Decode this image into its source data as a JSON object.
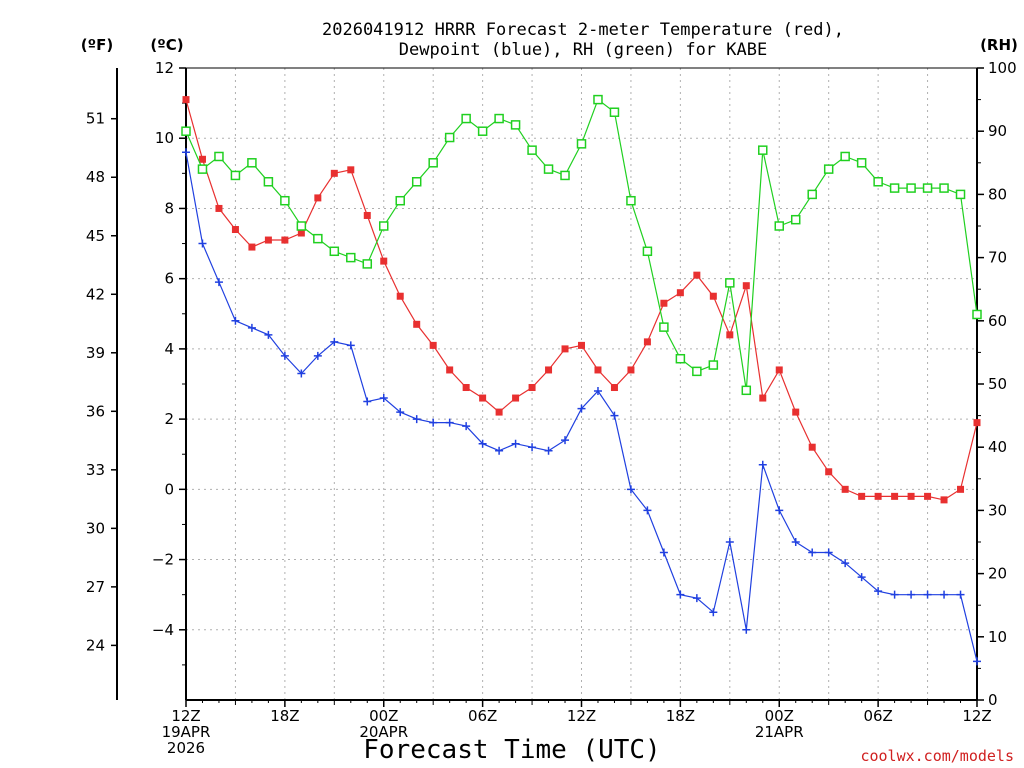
{
  "chart_data": {
    "type": "line",
    "title_line1": "2026041912 HRRR Forecast 2-meter Temperature (red),",
    "title_line2": "Dewpoint (blue), RH (green) for KABE",
    "xlabel": "Forecast Time (UTC)",
    "credit": "coolwx.com/models",
    "units": {
      "fahrenheit": "(ºF)",
      "celsius": "(ºC)",
      "rh": "(RH)"
    },
    "x_range": [
      0,
      48
    ],
    "celsius_axis": {
      "range": [
        -6,
        12
      ],
      "ticks": [
        -4,
        -2,
        0,
        2,
        4,
        6,
        8,
        10,
        12
      ],
      "tick_labels": [
        "−4",
        "−2",
        "0",
        "2",
        "4",
        "6",
        "8",
        "10",
        "12"
      ]
    },
    "fahrenheit_axis": {
      "ticks": [
        24,
        27,
        30,
        33,
        36,
        39,
        42,
        45,
        48,
        51
      ]
    },
    "rh_axis": {
      "range": [
        0,
        100
      ],
      "ticks": [
        0,
        10,
        20,
        30,
        40,
        50,
        60,
        70,
        80,
        90,
        100
      ]
    },
    "x_ticks": [
      {
        "hour": 0,
        "lines": [
          "12Z",
          "19APR",
          "2026"
        ]
      },
      {
        "hour": 6,
        "lines": [
          "18Z"
        ]
      },
      {
        "hour": 12,
        "lines": [
          "00Z",
          "20APR"
        ]
      },
      {
        "hour": 18,
        "lines": [
          "06Z"
        ]
      },
      {
        "hour": 24,
        "lines": [
          "12Z"
        ]
      },
      {
        "hour": 30,
        "lines": [
          "18Z"
        ]
      },
      {
        "hour": 36,
        "lines": [
          "00Z",
          "21APR"
        ]
      },
      {
        "hour": 42,
        "lines": [
          "06Z"
        ]
      },
      {
        "hour": 48,
        "lines": [
          "12Z"
        ]
      }
    ],
    "series": [
      {
        "name": "Temperature",
        "axis": "celsius",
        "color": "#e83030",
        "marker": "filled-square",
        "values": [
          11.1,
          9.4,
          8.0,
          7.4,
          6.9,
          7.1,
          7.1,
          7.3,
          8.3,
          9.0,
          9.1,
          7.8,
          6.5,
          5.5,
          4.7,
          4.1,
          3.4,
          2.9,
          2.6,
          2.2,
          2.6,
          2.9,
          3.4,
          4.0,
          4.1,
          3.4,
          2.9,
          3.4,
          4.2,
          5.3,
          5.6,
          6.1,
          5.5,
          4.4,
          5.8,
          2.6,
          3.4,
          2.2,
          1.2,
          0.5,
          0.0,
          -0.2,
          -0.2,
          -0.2,
          -0.2,
          -0.2,
          -0.3,
          0.0,
          1.9
        ]
      },
      {
        "name": "Dewpoint",
        "axis": "celsius",
        "color": "#2040e0",
        "marker": "plus",
        "values": [
          9.6,
          7.0,
          5.9,
          4.8,
          4.6,
          4.4,
          3.8,
          3.3,
          3.8,
          4.2,
          4.1,
          2.5,
          2.6,
          2.2,
          2.0,
          1.9,
          1.9,
          1.8,
          1.3,
          1.1,
          1.3,
          1.2,
          1.1,
          1.4,
          2.3,
          2.8,
          2.1,
          0.0,
          -0.6,
          -1.8,
          -3.0,
          -3.1,
          -3.5,
          -1.5,
          -4.0,
          0.7,
          -0.6,
          -1.5,
          -1.8,
          -1.8,
          -2.1,
          -2.5,
          -2.9,
          -3.0,
          -3.0,
          -3.0,
          -3.0,
          -3.0,
          -4.9
        ]
      },
      {
        "name": "RH",
        "axis": "rh",
        "color": "#20d020",
        "marker": "open-square",
        "values": [
          90,
          84,
          86,
          83,
          85,
          82,
          79,
          75,
          73,
          71,
          70,
          69,
          75,
          79,
          82,
          85,
          89,
          92,
          90,
          92,
          91,
          87,
          84,
          83,
          88,
          95,
          93,
          79,
          71,
          59,
          54,
          52,
          53,
          66,
          49,
          87,
          75,
          76,
          80,
          84,
          86,
          85,
          82,
          81,
          81,
          81,
          81,
          80,
          61
        ]
      }
    ]
  }
}
